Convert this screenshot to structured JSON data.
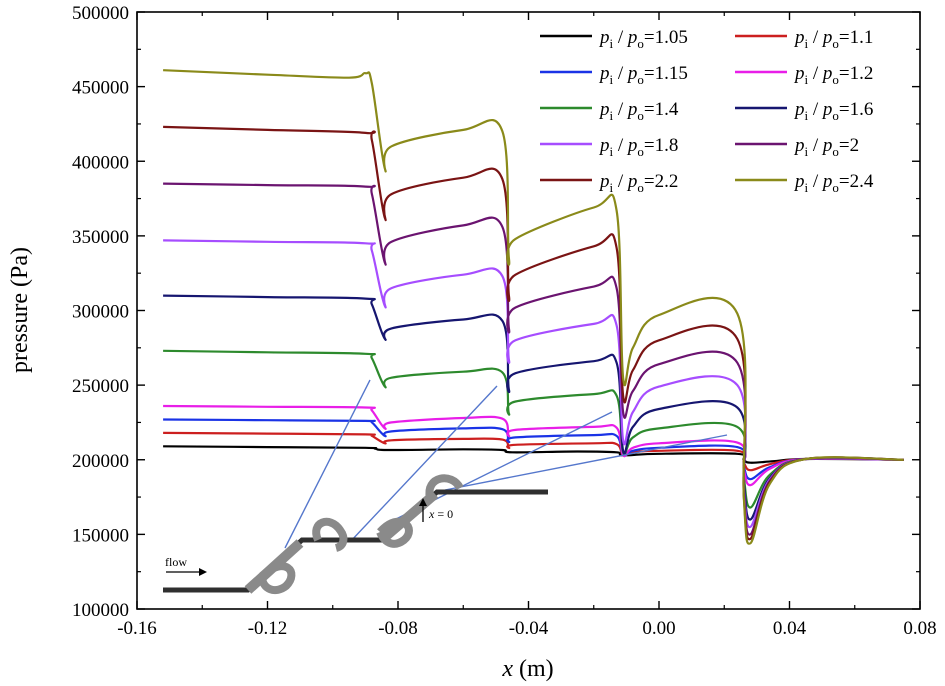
{
  "chart_data": {
    "type": "line",
    "title": "",
    "xlabel": "x (m)",
    "xlabel_var": "x",
    "xlabel_unit": "(m)",
    "ylabel": "pressure (Pa)",
    "xlim": [
      -0.16,
      0.08
    ],
    "ylim": [
      100000,
      500000
    ],
    "x_ticks": [
      "-0.16",
      "-0.12",
      "-0.08",
      "-0.04",
      "0.00",
      "0.04",
      "0.08"
    ],
    "y_ticks": [
      "100000",
      "150000",
      "200000",
      "250000",
      "300000",
      "350000",
      "400000",
      "450000",
      "500000"
    ],
    "legend_position": "top-right",
    "legend_columns": 2,
    "grid": false,
    "series": [
      {
        "name": "pi/po=1.05",
        "ratio": "1.05",
        "color": "#000000",
        "x": [
          -0.152,
          -0.12,
          -0.09,
          -0.087,
          -0.083,
          -0.06,
          -0.048,
          -0.045,
          -0.025,
          -0.013,
          -0.011,
          0.0,
          0.024,
          0.026,
          0.028,
          0.035,
          0.045,
          0.075
        ],
        "y": [
          209000,
          208500,
          208000,
          207500,
          206500,
          207000,
          206500,
          205000,
          205500,
          205000,
          203000,
          204000,
          204000,
          200000,
          198000,
          199000,
          200500,
          200000
        ]
      },
      {
        "name": "pi/po=1.1",
        "ratio": "1.1",
        "color": "#cc1f1f",
        "x": [
          -0.152,
          -0.12,
          -0.09,
          -0.088,
          -0.084,
          -0.082,
          -0.06,
          -0.048,
          -0.046,
          -0.044,
          -0.02,
          -0.013,
          -0.011,
          -0.008,
          0.0,
          0.024,
          0.026,
          0.028,
          0.034,
          0.045,
          0.075
        ],
        "y": [
          218000,
          217500,
          217000,
          216000,
          211000,
          213000,
          214000,
          213500,
          208000,
          210000,
          211000,
          210500,
          203000,
          205000,
          206000,
          206000,
          198000,
          193000,
          197000,
          200500,
          200000
        ]
      },
      {
        "name": "pi/po=1.15",
        "ratio": "1.15",
        "color": "#1a33e6",
        "x": [
          -0.152,
          -0.12,
          -0.09,
          -0.088,
          -0.084,
          -0.082,
          -0.06,
          -0.048,
          -0.046,
          -0.044,
          -0.02,
          -0.013,
          -0.011,
          -0.008,
          0.0,
          0.024,
          0.026,
          0.028,
          0.034,
          0.045,
          0.075
        ],
        "y": [
          227000,
          226500,
          226000,
          225000,
          216000,
          219000,
          221000,
          220500,
          212000,
          215000,
          216500,
          216000,
          203000,
          206000,
          208000,
          208500,
          195000,
          187000,
          195000,
          200500,
          200000
        ]
      },
      {
        "name": "pi/po=1.2",
        "ratio": "1.2",
        "color": "#e81ee8",
        "x": [
          -0.152,
          -0.12,
          -0.09,
          -0.088,
          -0.084,
          -0.082,
          -0.06,
          -0.048,
          -0.046,
          -0.044,
          -0.02,
          -0.013,
          -0.011,
          -0.008,
          0.0,
          0.024,
          0.026,
          0.028,
          0.034,
          0.045,
          0.075
        ],
        "y": [
          236000,
          235500,
          235000,
          233000,
          221000,
          225000,
          228000,
          227500,
          216000,
          220000,
          222000,
          221500,
          203000,
          208000,
          211000,
          211500,
          193000,
          183000,
          194000,
          200500,
          200000
        ]
      },
      {
        "name": "pi/po=1.4",
        "ratio": "1.4",
        "color": "#2d8a2d",
        "x": [
          -0.152,
          -0.12,
          -0.09,
          -0.088,
          -0.084,
          -0.082,
          -0.06,
          -0.048,
          -0.046,
          -0.044,
          -0.02,
          -0.013,
          -0.011,
          -0.008,
          0.0,
          0.024,
          0.026,
          0.028,
          0.034,
          0.045,
          0.075
        ],
        "y": [
          273000,
          272000,
          271000,
          268000,
          249000,
          255000,
          259000,
          258500,
          231000,
          239000,
          244000,
          243000,
          205000,
          215000,
          221000,
          222000,
          188000,
          168000,
          190000,
          200500,
          200000
        ]
      },
      {
        "name": "pi/po=1.6",
        "ratio": "1.6",
        "color": "#161670",
        "x": [
          -0.152,
          -0.12,
          -0.09,
          -0.088,
          -0.084,
          -0.082,
          -0.06,
          -0.048,
          -0.046,
          -0.044,
          -0.02,
          -0.013,
          -0.011,
          -0.008,
          0.0,
          0.024,
          0.026,
          0.028,
          0.034,
          0.045,
          0.075
        ],
        "y": [
          310000,
          309000,
          308000,
          304000,
          281000,
          288000,
          294000,
          293000,
          247000,
          258000,
          266000,
          265000,
          206000,
          222000,
          234000,
          235000,
          184000,
          160000,
          188000,
          200500,
          200000
        ]
      },
      {
        "name": "pi/po=1.8",
        "ratio": "1.8",
        "color": "#a64dff",
        "x": [
          -0.152,
          -0.12,
          -0.09,
          -0.088,
          -0.084,
          -0.082,
          -0.06,
          -0.048,
          -0.046,
          -0.044,
          -0.02,
          -0.013,
          -0.011,
          -0.008,
          0.0,
          0.024,
          0.026,
          0.028,
          0.034,
          0.045,
          0.075
        ],
        "y": [
          347000,
          346000,
          345000,
          340000,
          303000,
          315000,
          324000,
          323000,
          267000,
          280000,
          291000,
          290000,
          213000,
          232000,
          249000,
          250000,
          180000,
          155000,
          187000,
          200500,
          200000
        ]
      },
      {
        "name": "pi/po=2",
        "ratio": "2",
        "color": "#6b1470",
        "x": [
          -0.152,
          -0.12,
          -0.09,
          -0.088,
          -0.084,
          -0.082,
          -0.06,
          -0.048,
          -0.046,
          -0.044,
          -0.02,
          -0.013,
          -0.011,
          -0.008,
          0.0,
          0.024,
          0.026,
          0.028,
          0.034,
          0.045,
          0.075
        ],
        "y": [
          385000,
          384000,
          383000,
          378000,
          332000,
          346000,
          357000,
          356000,
          288000,
          302000,
          316000,
          315000,
          232000,
          246000,
          264000,
          265000,
          178000,
          150000,
          186000,
          200500,
          200000
        ]
      },
      {
        "name": "pi/po=2.2",
        "ratio": "2.2",
        "color": "#7a1414",
        "x": [
          -0.152,
          -0.12,
          -0.09,
          -0.088,
          -0.084,
          -0.082,
          -0.06,
          -0.048,
          -0.046,
          -0.044,
          -0.02,
          -0.013,
          -0.011,
          -0.008,
          0.0,
          0.024,
          0.026,
          0.028,
          0.034,
          0.045,
          0.075
        ],
        "y": [
          423000,
          421000,
          419000,
          414000,
          362000,
          378000,
          389000,
          388000,
          310000,
          324000,
          343000,
          342000,
          243000,
          260000,
          280000,
          281000,
          176000,
          147000,
          185000,
          200500,
          200000
        ]
      },
      {
        "name": "pi/po=2.4",
        "ratio": "2.4",
        "color": "#8a8a1a",
        "x": [
          -0.152,
          -0.12,
          -0.095,
          -0.09,
          -0.088,
          -0.084,
          -0.082,
          -0.06,
          -0.048,
          -0.046,
          -0.044,
          -0.02,
          -0.013,
          -0.011,
          -0.008,
          0.0,
          0.024,
          0.026,
          0.028,
          0.034,
          0.045,
          0.075
        ],
        "y": [
          461000,
          458000,
          456000,
          459000,
          452000,
          395000,
          410000,
          421000,
          420000,
          335000,
          348000,
          369000,
          367000,
          255000,
          275000,
          297000,
          298000,
          175000,
          144000,
          184000,
          200500,
          200000
        ]
      }
    ],
    "inset": {
      "label_flow": "flow",
      "label_x0_var": "x",
      "label_x0_rest": " = 0"
    },
    "colors": {
      "axis": "#000000",
      "inset_pipe": "#2f2f2f",
      "inset_ring": "#8a8a8a",
      "inset_line": "#5577cc"
    }
  }
}
